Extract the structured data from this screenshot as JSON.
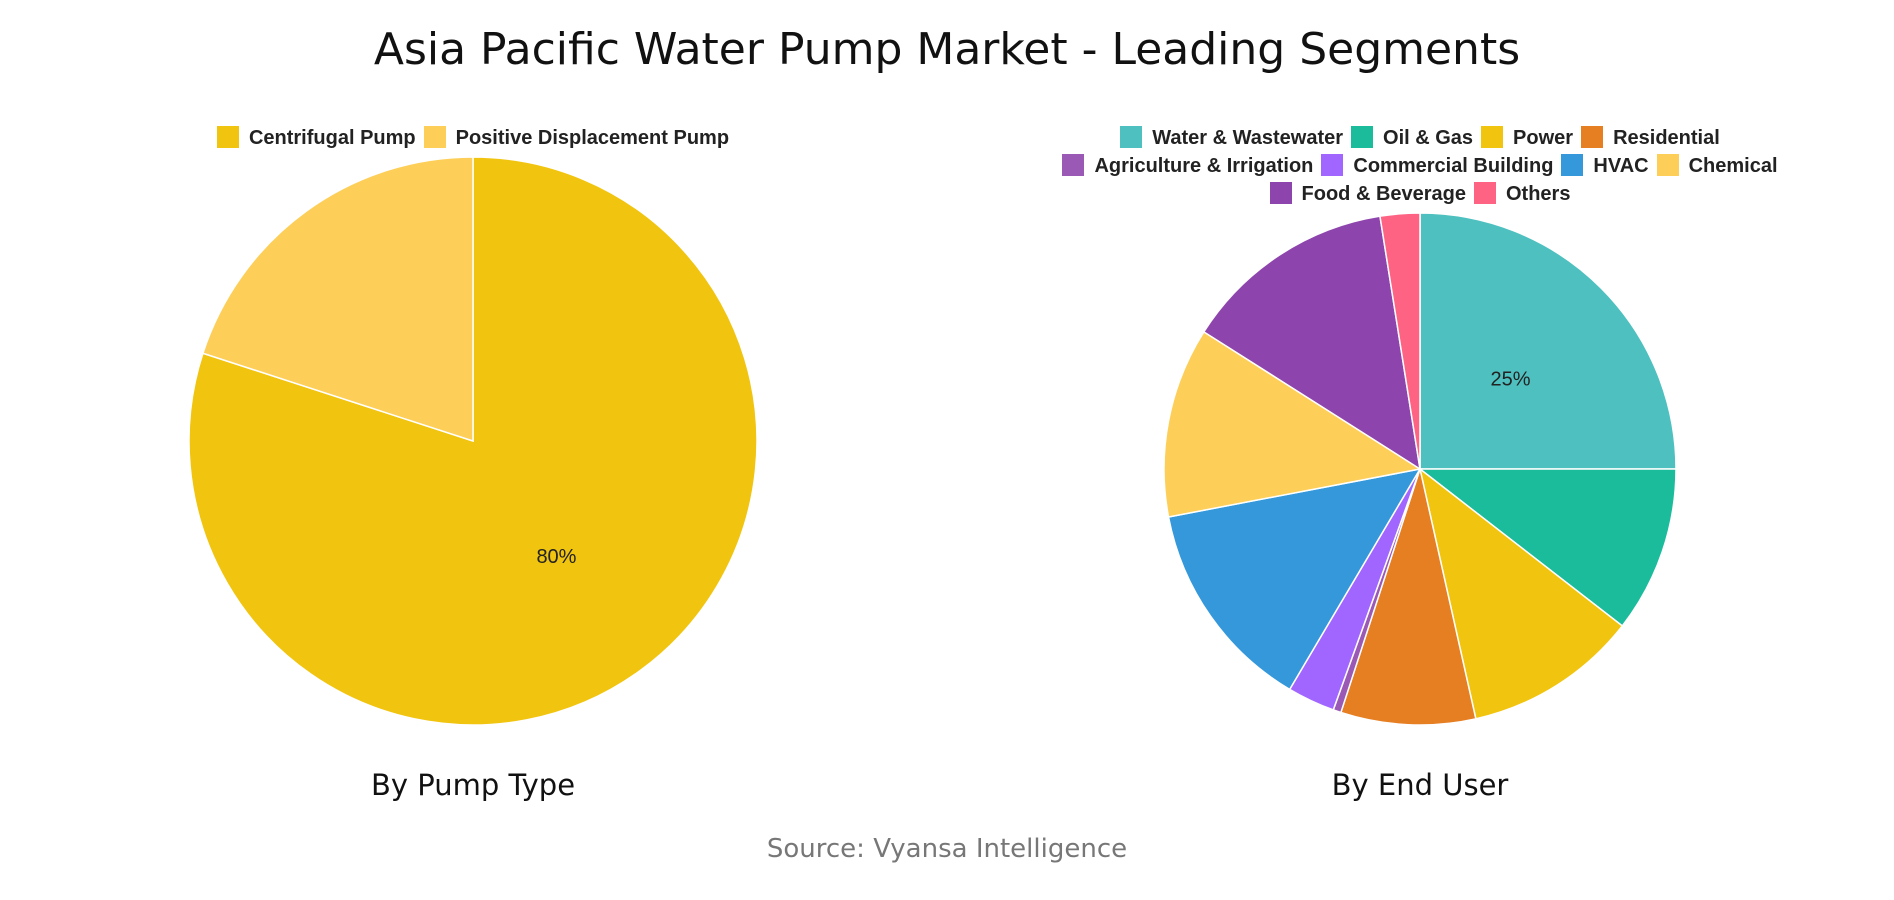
{
  "title": "Asia Pacific Water Pump Market - Leading Segments",
  "source": "Source: Vyansa Intelligence",
  "chart_data": [
    {
      "type": "pie",
      "subtitle": "By Pump Type",
      "legend_position": "top",
      "slices": [
        {
          "name": "Centrifugal Pump",
          "value": 80,
          "color": "#F1C40F",
          "label": "80%"
        },
        {
          "name": "Positive Displacement Pump",
          "value": 20,
          "color": "#FDCF58",
          "label": ""
        }
      ]
    },
    {
      "type": "pie",
      "subtitle": "By End User",
      "legend_position": "top",
      "slices": [
        {
          "name": "Water & Wastewater",
          "value": 25,
          "color": "#4DC0BF",
          "label": "25%"
        },
        {
          "name": "Oil & Gas",
          "value": 10.5,
          "color": "#1ABC9C",
          "label": ""
        },
        {
          "name": "Power",
          "value": 11,
          "color": "#F1C40F",
          "label": ""
        },
        {
          "name": "Residential",
          "value": 8.5,
          "color": "#E67E22",
          "label": ""
        },
        {
          "name": "Agriculture & Irrigation",
          "value": 0.5,
          "color": "#9B59B6",
          "label": ""
        },
        {
          "name": "Commercial Building",
          "value": 3,
          "color": "#A066FF",
          "label": ""
        },
        {
          "name": "HVAC",
          "value": 13.5,
          "color": "#3498DB",
          "label": ""
        },
        {
          "name": "Chemical",
          "value": 12,
          "color": "#FDCF58",
          "label": ""
        },
        {
          "name": "Food & Beverage",
          "value": 13.5,
          "color": "#8E44AD",
          "label": ""
        },
        {
          "name": "Others",
          "value": 2.5,
          "color": "#FF6384",
          "label": ""
        }
      ]
    }
  ]
}
